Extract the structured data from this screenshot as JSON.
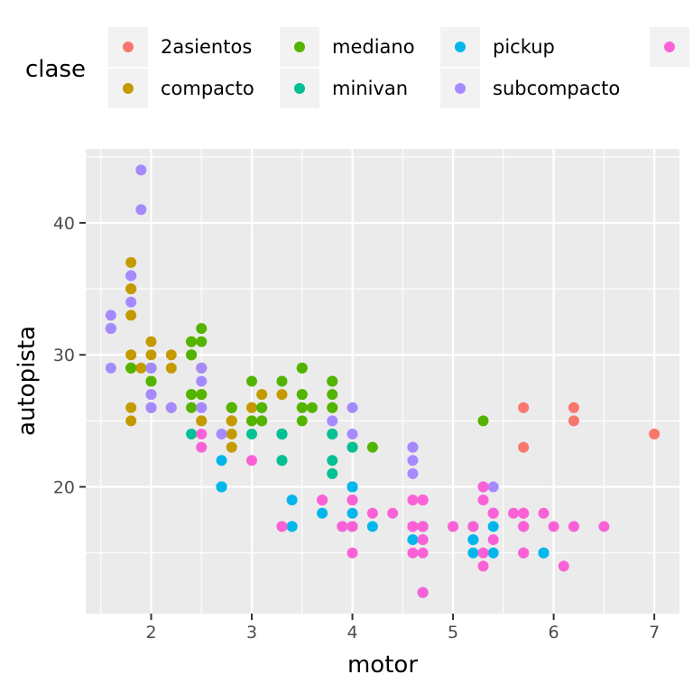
{
  "chart_data": {
    "type": "scatter",
    "title": "",
    "xlabel": "motor",
    "ylabel": "autopista",
    "xlim": [
      1.35,
      7.25
    ],
    "ylim": [
      10.4,
      45.6
    ],
    "x_ticks": [
      2,
      3,
      4,
      5,
      6,
      7
    ],
    "y_ticks": [
      20,
      30,
      40
    ],
    "grid": true,
    "legend": {
      "title": "clase",
      "position": "top",
      "entries": [
        {
          "name": "2asientos",
          "color": "#F8766D"
        },
        {
          "name": "compacto",
          "color": "#C49A00"
        },
        {
          "name": "mediano",
          "color": "#53B400"
        },
        {
          "name": "minivan",
          "color": "#00C094"
        },
        {
          "name": "pickup",
          "color": "#00B6EB"
        },
        {
          "name": "subcompacto",
          "color": "#A58AFF"
        },
        {
          "name": "",
          "color": "#FB61D7"
        }
      ]
    },
    "series": [
      {
        "name": "2asientos",
        "color": "#F8766D",
        "points": [
          [
            5.7,
            26
          ],
          [
            5.7,
            23
          ],
          [
            6.2,
            26
          ],
          [
            6.2,
            25
          ],
          [
            7.0,
            24
          ]
        ]
      },
      {
        "name": "compacto",
        "color": "#C49A00",
        "points": [
          [
            1.8,
            29
          ],
          [
            1.8,
            29
          ],
          [
            2.0,
            31
          ],
          [
            2.0,
            30
          ],
          [
            2.8,
            26
          ],
          [
            2.8,
            26
          ],
          [
            3.1,
            27
          ],
          [
            1.8,
            26
          ],
          [
            1.8,
            25
          ],
          [
            2.0,
            28
          ],
          [
            2.0,
            28
          ],
          [
            2.8,
            25
          ],
          [
            2.8,
            25
          ],
          [
            3.1,
            25
          ],
          [
            2.0,
            28
          ],
          [
            2.4,
            27
          ],
          [
            2.4,
            30
          ],
          [
            2.2,
            26
          ],
          [
            2.5,
            29
          ],
          [
            1.8,
            35
          ],
          [
            1.8,
            37
          ],
          [
            1.8,
            35
          ],
          [
            1.8,
            29
          ],
          [
            1.9,
            29
          ],
          [
            2.0,
            29
          ],
          [
            2.0,
            26
          ],
          [
            2.5,
            29
          ],
          [
            2.5,
            27
          ],
          [
            2.8,
            24
          ],
          [
            2.8,
            23
          ],
          [
            2.4,
            31
          ],
          [
            2.4,
            31
          ],
          [
            3.0,
            26
          ],
          [
            3.0,
            26
          ],
          [
            3.3,
            27
          ],
          [
            1.8,
            33
          ],
          [
            2.2,
            29
          ],
          [
            2.8,
            25
          ],
          [
            2.5,
            25
          ],
          [
            2.5,
            25
          ],
          [
            1.8,
            30
          ],
          [
            2.2,
            30
          ],
          [
            3.0,
            25
          ]
        ]
      },
      {
        "name": "mediano",
        "color": "#53B400",
        "points": [
          [
            2.4,
            26
          ],
          [
            2.4,
            30
          ],
          [
            3.1,
            26
          ],
          [
            3.5,
            29
          ],
          [
            3.6,
            26
          ],
          [
            2.4,
            30
          ],
          [
            3.0,
            25
          ],
          [
            3.3,
            28
          ],
          [
            3.3,
            24
          ],
          [
            3.3,
            24
          ],
          [
            3.5,
            27
          ],
          [
            3.5,
            26
          ],
          [
            3.8,
            26
          ],
          [
            3.8,
            27
          ],
          [
            3.8,
            28
          ],
          [
            5.3,
            25
          ],
          [
            1.8,
            29
          ],
          [
            1.8,
            29
          ],
          [
            2.0,
            28
          ],
          [
            2.0,
            29
          ],
          [
            2.8,
            26
          ],
          [
            2.8,
            26
          ],
          [
            3.1,
            26
          ],
          [
            4.0,
            23
          ],
          [
            4.2,
            23
          ],
          [
            2.0,
            26
          ],
          [
            2.0,
            29
          ],
          [
            2.5,
            31
          ],
          [
            2.5,
            32
          ],
          [
            2.5,
            27
          ],
          [
            3.5,
            26
          ],
          [
            3.5,
            25
          ],
          [
            3.1,
            25
          ],
          [
            3.8,
            28
          ],
          [
            3.8,
            26
          ],
          [
            3.5,
            29
          ],
          [
            3.5,
            29
          ],
          [
            2.4,
            27
          ],
          [
            2.4,
            31
          ],
          [
            2.8,
            26
          ],
          [
            3.0,
            28
          ],
          [
            3.5,
            27
          ]
        ]
      },
      {
        "name": "minivan",
        "color": "#00C094",
        "points": [
          [
            2.4,
            24
          ],
          [
            3.0,
            24
          ],
          [
            3.3,
            22
          ],
          [
            3.3,
            24
          ],
          [
            3.3,
            24
          ],
          [
            3.3,
            24
          ],
          [
            3.3,
            22
          ],
          [
            3.8,
            22
          ],
          [
            3.8,
            24
          ],
          [
            3.8,
            24
          ],
          [
            3.8,
            21
          ],
          [
            4.0,
            23
          ]
        ]
      },
      {
        "name": "pickup",
        "color": "#00B6EB",
        "points": [
          [
            2.7,
            20
          ],
          [
            2.7,
            20
          ],
          [
            2.7,
            22
          ],
          [
            3.4,
            17
          ],
          [
            3.4,
            19
          ],
          [
            3.7,
            18
          ],
          [
            3.9,
            17
          ],
          [
            4.0,
            17
          ],
          [
            4.0,
            18
          ],
          [
            4.2,
            17
          ],
          [
            4.6,
            16
          ],
          [
            4.7,
            12
          ],
          [
            4.7,
            17
          ],
          [
            5.2,
            15
          ],
          [
            5.2,
            16
          ],
          [
            5.7,
            17
          ],
          [
            5.9,
            15
          ],
          [
            4.7,
            17
          ],
          [
            4.7,
            12
          ],
          [
            4.7,
            16
          ],
          [
            5.2,
            16
          ],
          [
            5.2,
            17
          ],
          [
            5.7,
            15
          ],
          [
            5.9,
            15
          ],
          [
            4.0,
            20
          ],
          [
            4.0,
            20
          ],
          [
            4.6,
            17
          ],
          [
            5.4,
            15
          ],
          [
            5.4,
            17
          ],
          [
            3.4,
            17
          ],
          [
            4.0,
            20
          ],
          [
            4.7,
            17
          ],
          [
            2.7,
            20
          ]
        ]
      },
      {
        "name": "subcompacto",
        "color": "#A58AFF",
        "points": [
          [
            1.6,
            33
          ],
          [
            1.6,
            32
          ],
          [
            1.6,
            32
          ],
          [
            1.6,
            29
          ],
          [
            1.6,
            32
          ],
          [
            1.8,
            34
          ],
          [
            1.8,
            36
          ],
          [
            1.8,
            36
          ],
          [
            2.0,
            29
          ],
          [
            2.0,
            26
          ],
          [
            2.0,
            27
          ],
          [
            2.2,
            26
          ],
          [
            2.5,
            28
          ],
          [
            2.5,
            29
          ],
          [
            2.5,
            26
          ],
          [
            1.9,
            44
          ],
          [
            1.9,
            41
          ],
          [
            2.0,
            26
          ],
          [
            2.0,
            26
          ],
          [
            2.0,
            27
          ],
          [
            2.5,
            26
          ],
          [
            2.7,
            24
          ],
          [
            3.8,
            25
          ],
          [
            4.0,
            26
          ],
          [
            4.0,
            24
          ],
          [
            4.6,
            21
          ],
          [
            4.6,
            22
          ],
          [
            4.6,
            23
          ],
          [
            4.6,
            23
          ],
          [
            5.4,
            20
          ],
          [
            4.7,
            12
          ]
        ]
      },
      {
        "name": "",
        "color": "#FB61D7",
        "points": [
          [
            5.7,
            17
          ],
          [
            5.7,
            18
          ],
          [
            6.2,
            17
          ],
          [
            6.2,
            17
          ],
          [
            6.5,
            17
          ],
          [
            5.3,
            20
          ],
          [
            5.3,
            15
          ],
          [
            5.3,
            20
          ],
          [
            5.7,
            17
          ],
          [
            6.0,
            17
          ],
          [
            5.7,
            15
          ],
          [
            5.3,
            19
          ],
          [
            3.7,
            19
          ],
          [
            3.7,
            19
          ],
          [
            3.9,
            17
          ],
          [
            3.9,
            17
          ],
          [
            4.7,
            19
          ],
          [
            4.7,
            19
          ],
          [
            4.7,
            17
          ],
          [
            5.2,
            17
          ],
          [
            5.7,
            18
          ],
          [
            5.9,
            18
          ],
          [
            4.7,
            17
          ],
          [
            4.7,
            19
          ],
          [
            4.7,
            19
          ],
          [
            5.7,
            18
          ],
          [
            6.1,
            14
          ],
          [
            4.0,
            15
          ],
          [
            4.2,
            18
          ],
          [
            4.4,
            18
          ],
          [
            4.6,
            15
          ],
          [
            5.4,
            16
          ],
          [
            5.4,
            18
          ],
          [
            4.0,
            17
          ],
          [
            4.0,
            19
          ],
          [
            4.6,
            19
          ],
          [
            5.0,
            17
          ],
          [
            5.3,
            14
          ],
          [
            5.4,
            18
          ],
          [
            4.0,
            17
          ],
          [
            4.0,
            19
          ],
          [
            4.6,
            17
          ],
          [
            5.0,
            17
          ],
          [
            5.4,
            18
          ],
          [
            4.7,
            15
          ],
          [
            4.7,
            17
          ],
          [
            4.7,
            16
          ],
          [
            5.6,
            18
          ],
          [
            3.3,
            17
          ],
          [
            3.3,
            17
          ],
          [
            2.5,
            23
          ],
          [
            2.5,
            24
          ],
          [
            3.0,
            22
          ],
          [
            4.0,
            17
          ],
          [
            4.7,
            12
          ],
          [
            5.7,
            15
          ],
          [
            4.6,
            17
          ],
          [
            4.0,
            19
          ]
        ]
      }
    ]
  }
}
